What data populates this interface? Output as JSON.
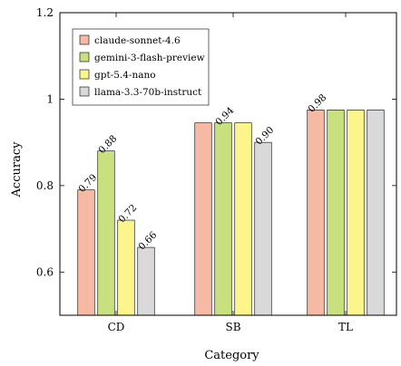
{
  "chart_data": {
    "type": "bar",
    "xlabel": "Category",
    "ylabel": "Accuracy",
    "categories": [
      "CD",
      "SB",
      "TL"
    ],
    "ylim": [
      0.5,
      1.2
    ],
    "yticks": [
      0.6,
      0.8,
      1,
      1.2
    ],
    "ytick_labels": [
      "0.6",
      "0.8",
      "1",
      "1.2"
    ],
    "grid": false,
    "legend_position": "top-left",
    "series": [
      {
        "name": "claude-sonnet-4.6",
        "color": "#f6b9a4",
        "values": [
          0.79,
          0.945,
          0.975
        ],
        "labels": [
          "0.79",
          "",
          "0.98"
        ]
      },
      {
        "name": "gemini-3-flash-preview",
        "color": "#c9e07e",
        "values": [
          0.88,
          0.945,
          0.975
        ],
        "labels": [
          "0.88",
          "0.94",
          ""
        ]
      },
      {
        "name": "gpt-5.4-nano",
        "color": "#fbf58c",
        "values": [
          0.72,
          0.945,
          0.975
        ],
        "labels": [
          "0.72",
          "",
          ""
        ]
      },
      {
        "name": "llama-3.3-70b-instruct",
        "color": "#d9d9d9",
        "values": [
          0.657,
          0.9,
          0.975
        ],
        "labels": [
          "0.66",
          "0.90",
          ""
        ]
      }
    ]
  }
}
